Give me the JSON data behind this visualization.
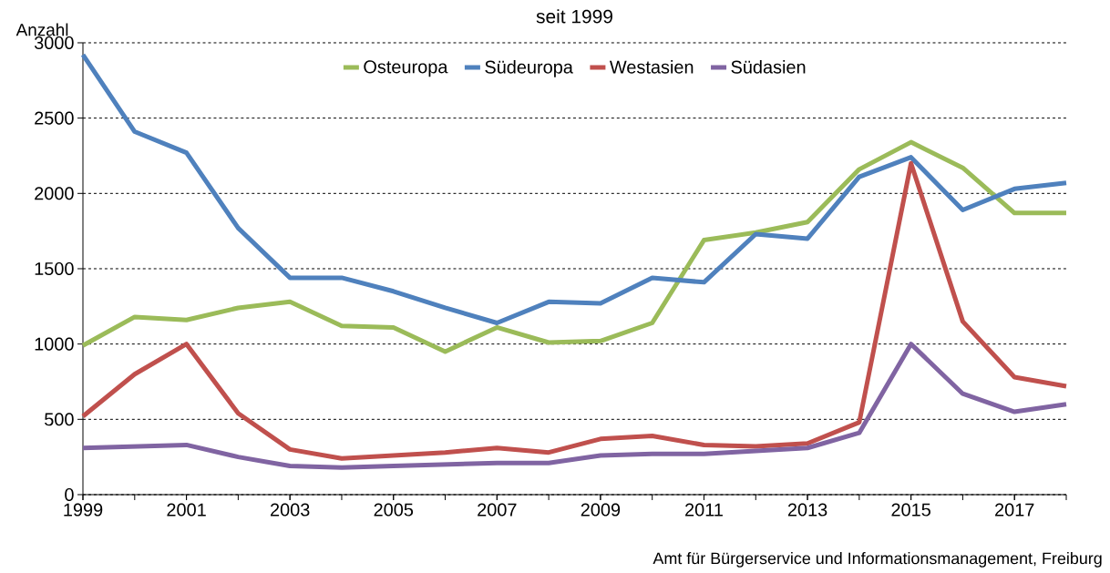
{
  "chart_data": {
    "type": "line",
    "title": "seit 1999",
    "ylabel": "Anzahl",
    "x": [
      1999,
      2000,
      2001,
      2002,
      2003,
      2004,
      2005,
      2006,
      2007,
      2008,
      2009,
      2010,
      2011,
      2012,
      2013,
      2014,
      2015,
      2016,
      2017,
      2018
    ],
    "series": [
      {
        "name": "Osteuropa",
        "color": "#9bbb59",
        "values": [
          990,
          1180,
          1160,
          1240,
          1280,
          1120,
          1110,
          950,
          1110,
          1010,
          1020,
          1140,
          1690,
          1740,
          1810,
          2160,
          2340,
          2170,
          1870,
          1870
        ]
      },
      {
        "name": "Südeuropa",
        "color": "#4f81bd",
        "values": [
          2920,
          2410,
          2270,
          1770,
          1440,
          1440,
          1350,
          1240,
          1140,
          1280,
          1270,
          1440,
          1410,
          1730,
          1700,
          2110,
          2240,
          1890,
          2030,
          2070
        ]
      },
      {
        "name": "Westasien",
        "color": "#c0504d",
        "values": [
          520,
          800,
          1000,
          540,
          300,
          240,
          260,
          280,
          310,
          280,
          370,
          390,
          330,
          320,
          340,
          480,
          2200,
          1150,
          780,
          720
        ]
      },
      {
        "name": "Südasien",
        "color": "#8064a2",
        "values": [
          310,
          320,
          330,
          250,
          190,
          180,
          190,
          200,
          210,
          210,
          260,
          270,
          270,
          290,
          310,
          410,
          1000,
          670,
          550,
          600
        ]
      }
    ],
    "xlim": [
      1999,
      2018
    ],
    "xticks": [
      1999,
      2001,
      2003,
      2005,
      2007,
      2009,
      2011,
      2013,
      2015,
      2017
    ],
    "ylim": [
      0,
      3000
    ],
    "yticks": [
      0,
      500,
      1000,
      1500,
      2000,
      2500,
      3000
    ],
    "grid": "y",
    "legend": "top",
    "marker": "none",
    "line_style": "solid",
    "annotations": [
      "Amt für Bürgerservice und Informationsmanagement, Freiburg"
    ]
  }
}
